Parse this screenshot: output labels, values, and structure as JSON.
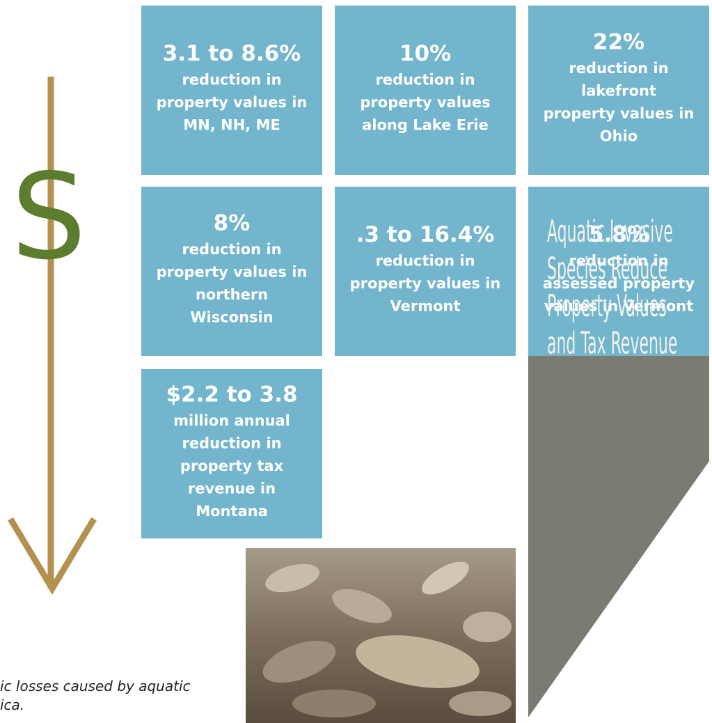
{
  "tiles": [
    {
      "headline": "3.1 to 8.6%",
      "lines": [
        "reduction in",
        "property values in",
        "MN, NH, ME"
      ]
    },
    {
      "headline": "10%",
      "lines": [
        "reduction in",
        "property values",
        "along Lake Erie"
      ]
    },
    {
      "headline": "22%",
      "lines": [
        "reduction in",
        "lakefront",
        "property values in",
        "Ohio"
      ]
    },
    {
      "headline": "8%",
      "lines": [
        "reduction in",
        "property values in",
        "northern",
        "Wisconsin"
      ]
    },
    {
      "headline": ".3 to 16.4%",
      "lines": [
        "reduction in",
        "property values in",
        "Vermont"
      ]
    },
    {
      "headline": "5.8%",
      "lines": [
        "reduction in",
        "assessed property",
        "values in Vermont"
      ]
    },
    {
      "headline": "$2.2 to 3.8",
      "lines": [
        "million annual",
        "reduction in",
        "property  tax",
        "revenue in",
        "Montana"
      ]
    }
  ],
  "panel": {
    "title_lines": [
      "Aquatic Invasive",
      "Species Reduce",
      "Property Values",
      "and Tax Revenue"
    ]
  },
  "symbol": "S",
  "caption": {
    "lines": [
      "ic losses caused by aquatic",
      "ica."
    ]
  }
}
